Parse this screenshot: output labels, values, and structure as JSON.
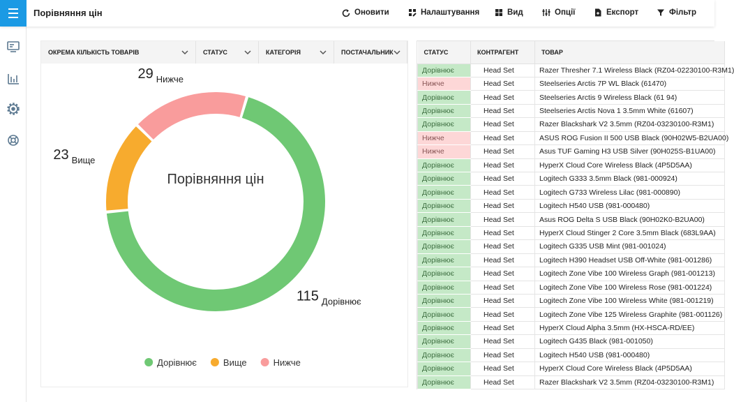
{
  "header": {
    "title": "Порівняння цін"
  },
  "toolbar": [
    "Оновити",
    "Налаштування",
    "Вид",
    "Опції",
    "Експорт",
    "Фільтр"
  ],
  "filters": [
    "ОКРЕМА КІЛЬКІСТЬ ТОВАРІВ",
    "СТАТУС",
    "КАТЕГОРІЯ",
    "ПОСТАЧАЛЬНИК"
  ],
  "chart_data": {
    "type": "donut",
    "title": "Порівняння цін",
    "categories": [
      "Дорівнює",
      "Вище",
      "Нижче"
    ],
    "values": [
      115,
      23,
      29
    ],
    "colors": [
      "#6fc874",
      "#f7ab2e",
      "#f99c9c"
    ]
  },
  "table": {
    "columns": [
      "СТАТУС",
      "КОНТРАГЕНТ",
      "ТОВАР"
    ],
    "rows": [
      [
        "Дорівнює",
        "Head Set",
        "Razer Thresher 7.1 Wireless Black (RZ04-02230100-R3M1)"
      ],
      [
        "Нижче",
        "Head Set",
        "Steelseries Arctis 7P WL Black (61470)"
      ],
      [
        "Дорівнює",
        "Head Set",
        "Steelseries Arctis 9 Wireless Black (61 94)"
      ],
      [
        "Дорівнює",
        "Head Set",
        "Steelseries Arctis Nova 1 3.5mm White (61607)"
      ],
      [
        "Дорівнює",
        "Head Set",
        "Razer Blackshark V2 3.5mm (RZ04-03230100-R3M1)"
      ],
      [
        "Нижче",
        "Head Set",
        "ASUS ROG Fusion II 500 USB Black (90H02W5-B2UA00)"
      ],
      [
        "Нижче",
        "Head Set",
        "Asus TUF Gaming H3 USB Silver (90H025S-B1UA00)"
      ],
      [
        "Дорівнює",
        "Head Set",
        "HyperX Cloud Core Wireless Black (4P5D5AA)"
      ],
      [
        "Дорівнює",
        "Head Set",
        "Logitech G333 3.5mm Black (981-000924)"
      ],
      [
        "Дорівнює",
        "Head Set",
        "Logitech G733 Wireless Lilac (981-000890)"
      ],
      [
        "Дорівнює",
        "Head Set",
        "Logitech H540 USB (981-000480)"
      ],
      [
        "Дорівнює",
        "Head Set",
        "Asus ROG Delta S USB Black (90H02K0-B2UA00)"
      ],
      [
        "Дорівнює",
        "Head Set",
        "HyperX Cloud Stinger 2 Core 3.5mm Black (683L9AA)"
      ],
      [
        "Дорівнює",
        "Head Set",
        "Logitech G335 USB Mint (981-001024)"
      ],
      [
        "Дорівнює",
        "Head Set",
        "Logitech H390 Headset USB Off-White (981-001286)"
      ],
      [
        "Дорівнює",
        "Head Set",
        "Logitech Zone Vibe 100 Wireless Graph (981-001213)"
      ],
      [
        "Дорівнює",
        "Head Set",
        "Logitech Zone Vibe 100 Wireless Rose (981-001224)"
      ],
      [
        "Дорівнює",
        "Head Set",
        "Logitech Zone Vibe 100 Wireless White (981-001219)"
      ],
      [
        "Дорівнює",
        "Head Set",
        "Logitech Zone Vibe 125 Wireless Graphite (981-001126)"
      ],
      [
        "Дорівнює",
        "Head Set",
        "HyperX Cloud Alpha 3.5mm (HX-HSCA-RD/EE)"
      ],
      [
        "Дорівнює",
        "Head Set",
        "Logitech G435 Black (981-001050)"
      ],
      [
        "Дорівнює",
        "Head Set",
        "Logitech H540 USB (981-000480)"
      ],
      [
        "Дорівнює",
        "Head Set",
        "HyperX Cloud Core Wireless Black (4P5D5AA)"
      ],
      [
        "Дорівнює",
        "Head Set",
        "Razer Blackshark V2 3.5mm (RZ04-03230100-R3M1)"
      ]
    ]
  }
}
